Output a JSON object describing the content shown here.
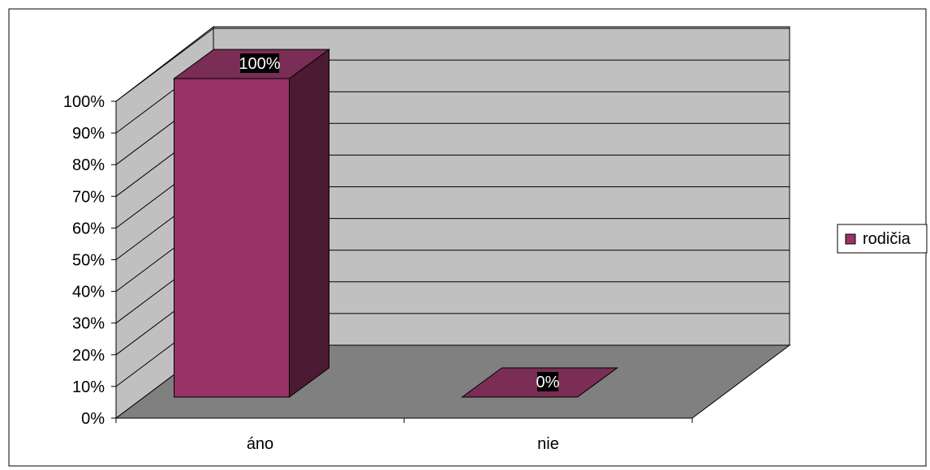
{
  "chart_data": {
    "type": "bar",
    "style": "3d-column",
    "categories": [
      "áno",
      "nie"
    ],
    "series": [
      {
        "name": "rodičia",
        "values": [
          100,
          0
        ],
        "data_labels": [
          "100%",
          "0%"
        ]
      }
    ],
    "y_ticks": [
      "0%",
      "10%",
      "20%",
      "30%",
      "40%",
      "50%",
      "60%",
      "70%",
      "80%",
      "90%",
      "100%"
    ],
    "ylim": [
      0,
      100
    ],
    "grid": true,
    "legend": {
      "position": "right",
      "entries": [
        "rodičia"
      ]
    },
    "colors": {
      "bar_front": "#993366",
      "bar_top": "#7a2d55",
      "bar_side": "#4d1a33",
      "back_wall": "#c0c0c0",
      "side_wall": "#c0c0c0",
      "floor": "#808080",
      "label_bg": "#000000",
      "label_text": "#ffffff"
    }
  }
}
